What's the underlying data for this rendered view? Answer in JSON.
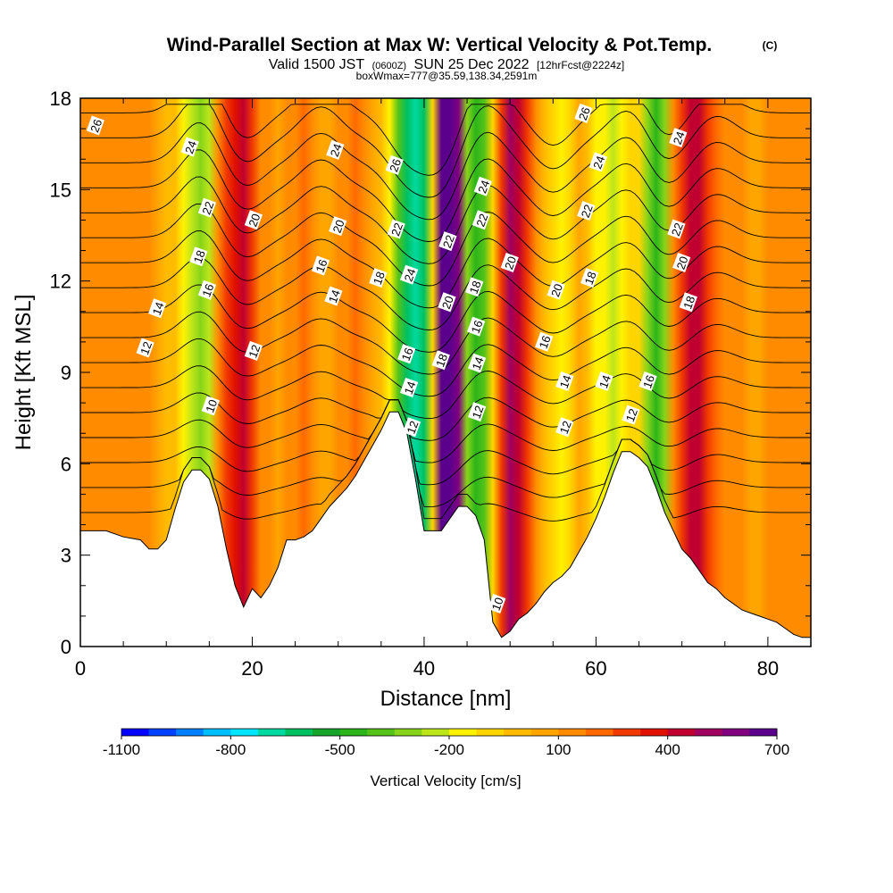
{
  "title": {
    "main": "Wind-Parallel Section at Max W: Vertical Velocity & Pot.Temp.",
    "copyright": "(C)",
    "valid_prefix": "Valid 1500 JST",
    "valid_utc": "(0600Z)",
    "valid_date": "SUN 25 Dec 2022",
    "forecast": "[12hrFcst@2224z]",
    "box_info": "boxWmax=777@35.59,138.34,2591m"
  },
  "chart_data": {
    "type": "heatmap",
    "xlabel": "Distance [nm]",
    "ylabel": "Height [Kft MSL]",
    "xlim": [
      0,
      85
    ],
    "ylim": [
      0,
      18
    ],
    "x_ticks": [
      "0",
      "20",
      "40",
      "60",
      "80"
    ],
    "y_ticks": [
      "0",
      "3",
      "6",
      "9",
      "12",
      "15",
      "18"
    ],
    "terrain": {
      "x": [
        0,
        3,
        5,
        7,
        8,
        9,
        10,
        11,
        12,
        13,
        14,
        15,
        16,
        17,
        18,
        19,
        20,
        21,
        22,
        23,
        24,
        25,
        26,
        27,
        28,
        29,
        30,
        31,
        32,
        33,
        34,
        35,
        36,
        37,
        38,
        39,
        40,
        41,
        42,
        43,
        44,
        45,
        46,
        47,
        48,
        49,
        50,
        51,
        52,
        53,
        54,
        55,
        56,
        57,
        58,
        59,
        60,
        61,
        62,
        63,
        64,
        65,
        66,
        67,
        68,
        69,
        70,
        71,
        72,
        73,
        74,
        75,
        76,
        77,
        78,
        79,
        80,
        81,
        82,
        83,
        84,
        85
      ],
      "height": [
        3.8,
        3.8,
        3.6,
        3.5,
        3.2,
        3.2,
        3.5,
        4.5,
        5.4,
        5.8,
        5.8,
        5.5,
        4.6,
        3.2,
        2.0,
        1.3,
        1.9,
        1.6,
        2.0,
        2.6,
        3.5,
        3.5,
        3.6,
        3.8,
        4.2,
        4.6,
        4.9,
        5.2,
        5.6,
        6.1,
        6.6,
        7.1,
        7.7,
        7.7,
        7.0,
        5.5,
        3.8,
        3.8,
        3.8,
        4.2,
        4.6,
        4.6,
        4.3,
        3.5,
        0.8,
        0.3,
        0.5,
        0.9,
        1.1,
        1.4,
        1.8,
        2.1,
        2.3,
        2.6,
        3.1,
        3.6,
        4.2,
        4.9,
        5.7,
        6.4,
        6.4,
        6.2,
        5.9,
        5.2,
        4.4,
        3.8,
        3.2,
        2.9,
        2.5,
        2.1,
        1.9,
        1.6,
        1.4,
        1.2,
        1.1,
        1.0,
        0.9,
        0.8,
        0.6,
        0.4,
        0.3,
        0.3
      ]
    },
    "w_columns": {
      "x": [
        0,
        2,
        4,
        6,
        8,
        10,
        11,
        12,
        13,
        14,
        15,
        16,
        17,
        18,
        19,
        20,
        21,
        22,
        23,
        24,
        25,
        26,
        27,
        28,
        29,
        30,
        31,
        32,
        33,
        34,
        35,
        36,
        37,
        38,
        39,
        40,
        41,
        42,
        43,
        44,
        45,
        46,
        47,
        48,
        49,
        50,
        51,
        52,
        53,
        54,
        55,
        56,
        57,
        58,
        59,
        60,
        61,
        62,
        63,
        64,
        65,
        66,
        67,
        68,
        69,
        70,
        71,
        72,
        73,
        74,
        75,
        76,
        77,
        78,
        79,
        80,
        82,
        85
      ],
      "w_cm_s": [
        100,
        100,
        150,
        100,
        100,
        0,
        -50,
        -150,
        -250,
        -350,
        -250,
        100,
        250,
        350,
        400,
        300,
        150,
        100,
        50,
        100,
        150,
        200,
        100,
        50,
        50,
        100,
        150,
        200,
        150,
        50,
        -50,
        -200,
        -400,
        -600,
        -700,
        -600,
        -100,
        700,
        800,
        600,
        -300,
        -500,
        -400,
        -100,
        300,
        500,
        450,
        300,
        100,
        0,
        -100,
        -150,
        -100,
        50,
        0,
        -150,
        -200,
        -250,
        -200,
        -100,
        -100,
        -300,
        -500,
        -300,
        100,
        300,
        450,
        400,
        300,
        200,
        150,
        100,
        100,
        50,
        50,
        100,
        150,
        100
      ]
    },
    "colorbar": {
      "title": "Vertical Velocity [cm/s]",
      "tick_labels": [
        "-1100",
        "-800",
        "-500",
        "-200",
        "100",
        "400",
        "700"
      ],
      "colors": [
        "#0000ff",
        "#0040ff",
        "#0080ff",
        "#00bfff",
        "#00e5ff",
        "#00d9a0",
        "#00c060",
        "#16a52a",
        "#2bb51a",
        "#55c21a",
        "#88d41a",
        "#bce51a",
        "#fff200",
        "#ffd500",
        "#ffbb00",
        "#ffa500",
        "#ff8c00",
        "#ff6a00",
        "#f03a00",
        "#e01000",
        "#c00030",
        "#a00060",
        "#800080",
        "#5a008c"
      ],
      "levels_min": -1100,
      "levels_step": 75
    },
    "theta_levels": [
      10,
      11,
      12,
      13,
      14,
      15,
      16,
      17,
      18,
      19,
      20,
      21,
      22,
      23,
      24,
      25,
      26
    ],
    "contour_labels": [
      {
        "text": "26",
        "x": 1.8,
        "y": 17.1
      },
      {
        "text": "24",
        "x": 12.8,
        "y": 16.4
      },
      {
        "text": "22",
        "x": 14.8,
        "y": 14.4
      },
      {
        "text": "18",
        "x": 13.8,
        "y": 12.8
      },
      {
        "text": "16",
        "x": 14.8,
        "y": 11.7
      },
      {
        "text": "14",
        "x": 9.0,
        "y": 11.1
      },
      {
        "text": "12",
        "x": 7.6,
        "y": 9.8
      },
      {
        "text": "10",
        "x": 15.2,
        "y": 7.9
      },
      {
        "text": "20",
        "x": 20.2,
        "y": 14.0
      },
      {
        "text": "12",
        "x": 20.2,
        "y": 9.7
      },
      {
        "text": "24",
        "x": 29.7,
        "y": 16.3
      },
      {
        "text": "20",
        "x": 30.0,
        "y": 13.8
      },
      {
        "text": "16",
        "x": 28.0,
        "y": 12.5
      },
      {
        "text": "14",
        "x": 29.5,
        "y": 11.5
      },
      {
        "text": "18",
        "x": 34.7,
        "y": 12.1
      },
      {
        "text": "26",
        "x": 36.6,
        "y": 15.8
      },
      {
        "text": "22",
        "x": 36.8,
        "y": 13.7
      },
      {
        "text": "24",
        "x": 38.3,
        "y": 12.2
      },
      {
        "text": "16",
        "x": 38.0,
        "y": 9.6
      },
      {
        "text": "14",
        "x": 38.3,
        "y": 8.5
      },
      {
        "text": "12",
        "x": 38.6,
        "y": 7.2
      },
      {
        "text": "22",
        "x": 42.8,
        "y": 13.3
      },
      {
        "text": "20",
        "x": 42.7,
        "y": 11.3
      },
      {
        "text": "18",
        "x": 42.0,
        "y": 9.4
      },
      {
        "text": "24",
        "x": 46.9,
        "y": 15.1
      },
      {
        "text": "22",
        "x": 46.7,
        "y": 14.0
      },
      {
        "text": "18",
        "x": 45.9,
        "y": 11.8
      },
      {
        "text": "16",
        "x": 46.1,
        "y": 10.5
      },
      {
        "text": "14",
        "x": 46.2,
        "y": 9.3
      },
      {
        "text": "12",
        "x": 46.2,
        "y": 7.7
      },
      {
        "text": "10",
        "x": 48.5,
        "y": 1.4
      },
      {
        "text": "20",
        "x": 50.0,
        "y": 12.6
      },
      {
        "text": "26",
        "x": 58.6,
        "y": 17.5
      },
      {
        "text": "24",
        "x": 60.3,
        "y": 15.9
      },
      {
        "text": "22",
        "x": 58.9,
        "y": 14.3
      },
      {
        "text": "20",
        "x": 55.4,
        "y": 11.7
      },
      {
        "text": "18",
        "x": 59.3,
        "y": 12.1
      },
      {
        "text": "16",
        "x": 54.0,
        "y": 10.0
      },
      {
        "text": "14",
        "x": 56.4,
        "y": 8.7
      },
      {
        "text": "14",
        "x": 61.0,
        "y": 8.7
      },
      {
        "text": "12",
        "x": 56.4,
        "y": 7.2
      },
      {
        "text": "12",
        "x": 64.1,
        "y": 7.6
      },
      {
        "text": "16",
        "x": 66.1,
        "y": 8.7
      },
      {
        "text": "24",
        "x": 69.6,
        "y": 16.7
      },
      {
        "text": "22",
        "x": 69.4,
        "y": 13.7
      },
      {
        "text": "20",
        "x": 70.0,
        "y": 12.6
      },
      {
        "text": "18",
        "x": 70.8,
        "y": 11.3
      }
    ]
  }
}
